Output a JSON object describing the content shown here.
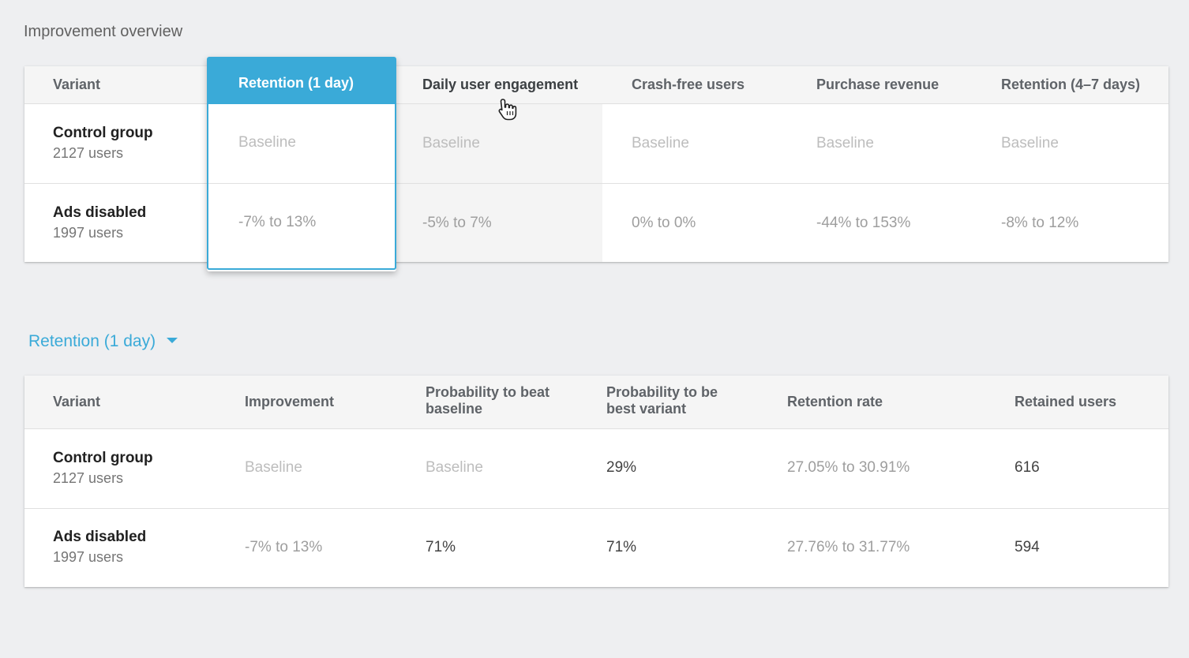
{
  "overview": {
    "title": "Improvement overview",
    "columns": [
      "Variant",
      "Retention (1 day)",
      "Daily user engagement",
      "Crash-free users",
      "Purchase revenue",
      "Retention (4–7 days)"
    ],
    "selected_column": "Retention (1 day)",
    "rows": [
      {
        "name": "Control group",
        "users": "2127 users",
        "values": [
          "Baseline",
          "Baseline",
          "Baseline",
          "Baseline",
          "Baseline"
        ]
      },
      {
        "name": "Ads disabled",
        "users": "1997 users",
        "values": [
          "-7% to 13%",
          "-5% to 7%",
          "0% to 0%",
          "-44% to 153%",
          "-8% to 12%"
        ]
      }
    ]
  },
  "metric_selector": {
    "label": "Retention (1 day)",
    "icon": "caret-down-icon",
    "color": "#3aaad8"
  },
  "detail": {
    "columns": [
      "Variant",
      "Improvement",
      "Probability to beat baseline",
      "Probability to be best variant",
      "Retention rate",
      "Retained users"
    ],
    "rows": [
      {
        "name": "Control group",
        "users": "2127 users",
        "values": [
          "Baseline",
          "Baseline",
          "29%",
          "27.05% to 30.91%",
          "616"
        ]
      },
      {
        "name": "Ads disabled",
        "users": "1997 users",
        "values": [
          "-7% to 13%",
          "71%",
          "71%",
          "27.76% to 31.77%",
          "594"
        ]
      }
    ]
  },
  "cursor": {
    "icon": "hand-pointer-icon"
  }
}
